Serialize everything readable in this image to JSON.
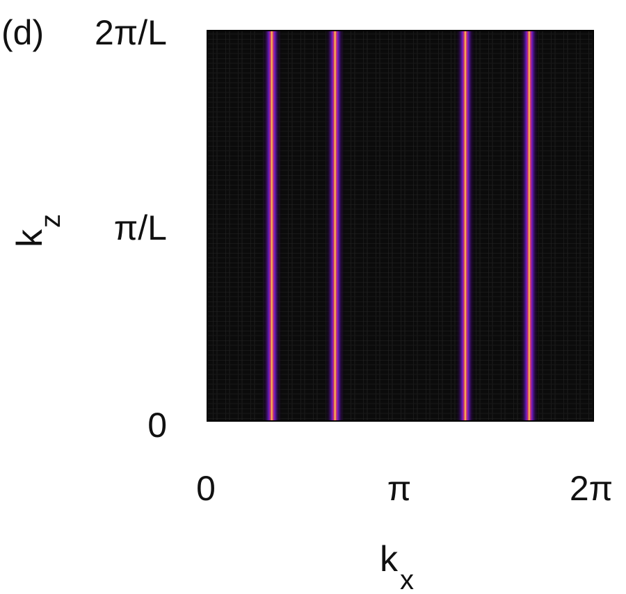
{
  "chart_data": {
    "type": "heatmap",
    "panel_label": "(d)",
    "xlabel": "k",
    "xlabel_sub": "x",
    "ylabel": "k",
    "ylabel_sub": "z",
    "x_ticks": [
      {
        "value": 0,
        "label": "0"
      },
      {
        "value": 3.14159,
        "label": "π"
      },
      {
        "value": 6.28319,
        "label": "2π"
      }
    ],
    "y_ticks": [
      {
        "value": 0,
        "label": "0"
      },
      {
        "value": 0.5,
        "label": "π/L"
      },
      {
        "value": 1,
        "label": "2π/L"
      }
    ],
    "xlim": [
      0,
      6.28319
    ],
    "ylim_units_of_2pi_over_L": [
      0,
      1
    ],
    "colormap": [
      "#000000",
      "#3a0a5e",
      "#7a1fd0",
      "#d82e6a",
      "#ff9a1a",
      "#ffe066"
    ],
    "background_color": "#0d0d0d",
    "intensity_ridges_kx": [
      1.05,
      2.08,
      4.2,
      5.24
    ],
    "ridge_profile": "constant along k_z"
  }
}
